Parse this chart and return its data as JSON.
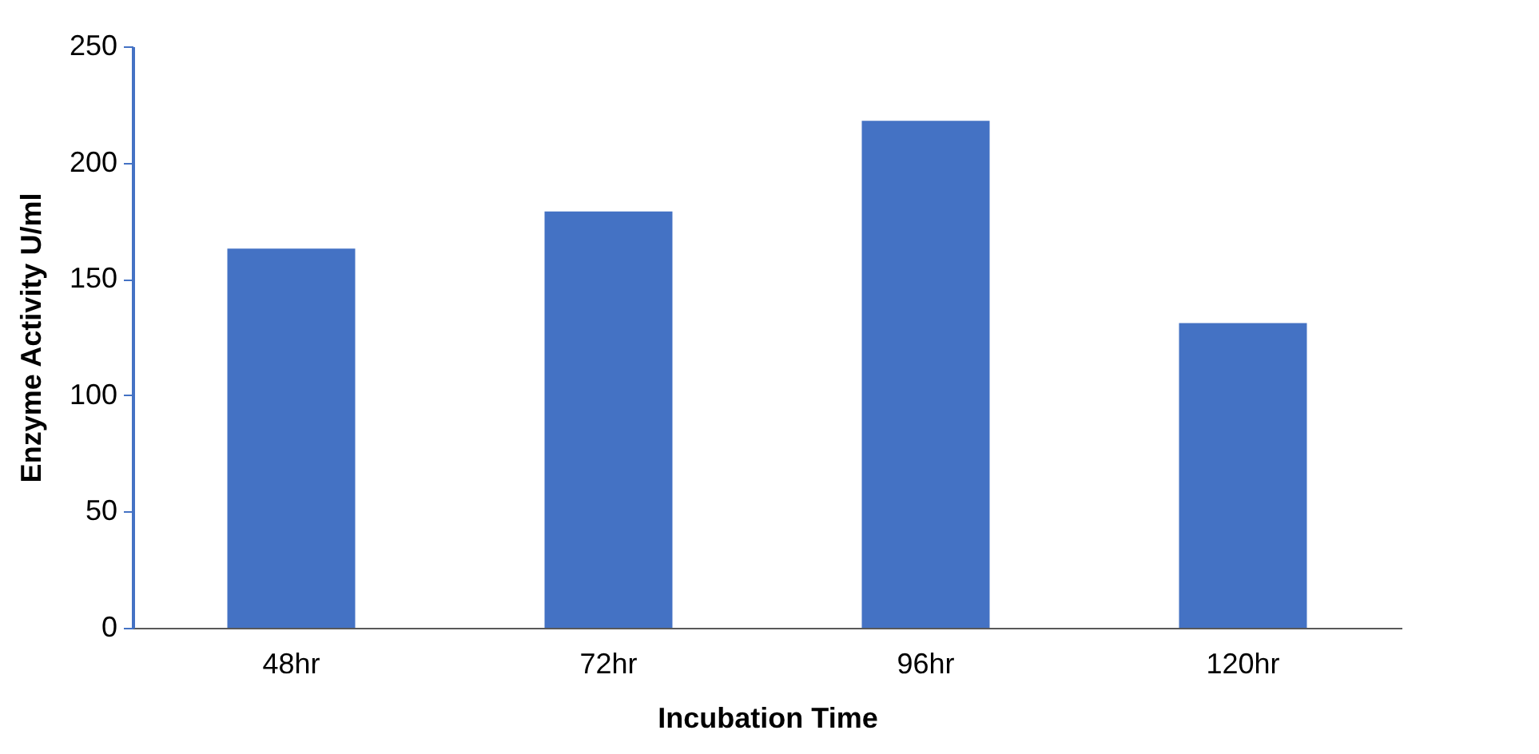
{
  "chart_data": {
    "type": "bar",
    "xlabel": "Incubation Time",
    "ylabel": "Enzyme Activity U/ml",
    "categories": [
      "48hr",
      "72hr",
      "96hr",
      "120hr"
    ],
    "values": [
      163,
      179,
      218,
      131
    ],
    "color": "#4472c4",
    "ylim": [
      0,
      250
    ],
    "yticks": [
      0,
      50,
      100,
      150,
      200,
      250
    ],
    "grid": false
  }
}
